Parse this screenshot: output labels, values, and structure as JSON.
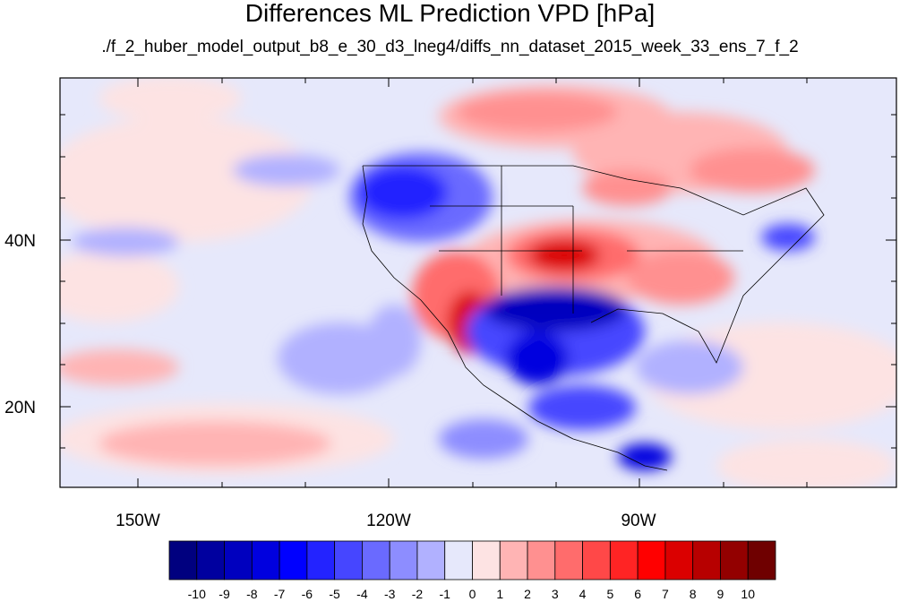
{
  "title": "Differences ML Prediction VPD [hPa]",
  "subtitle": "./f_2_huber_model_output_b8_e_30_d3_lneg4/diffs_nn_dataset_2015_week_33_ens_7_f_2",
  "map": {
    "lat_labels": [
      "40N",
      "20N"
    ],
    "lon_labels": [
      "150W",
      "120W",
      "90W"
    ]
  },
  "colorbar": {
    "labels": [
      "-10",
      "-9",
      "-8",
      "-7",
      "-6",
      "-5",
      "-4",
      "-3",
      "-2",
      "-1",
      "0",
      "1",
      "2",
      "3",
      "4",
      "5",
      "6",
      "7",
      "8",
      "9",
      "10"
    ],
    "colors": [
      "#00007f",
      "#00009f",
      "#0000bf",
      "#0000df",
      "#0000ff",
      "#2323ff",
      "#4646ff",
      "#6a6aff",
      "#8d8dff",
      "#b1b1ff",
      "#e6e8fb",
      "#fde3e3",
      "#ffb4b4",
      "#ff9090",
      "#ff6c6c",
      "#ff4848",
      "#ff2424",
      "#ff0000",
      "#db0000",
      "#b70000",
      "#930000",
      "#6f0000"
    ]
  }
}
